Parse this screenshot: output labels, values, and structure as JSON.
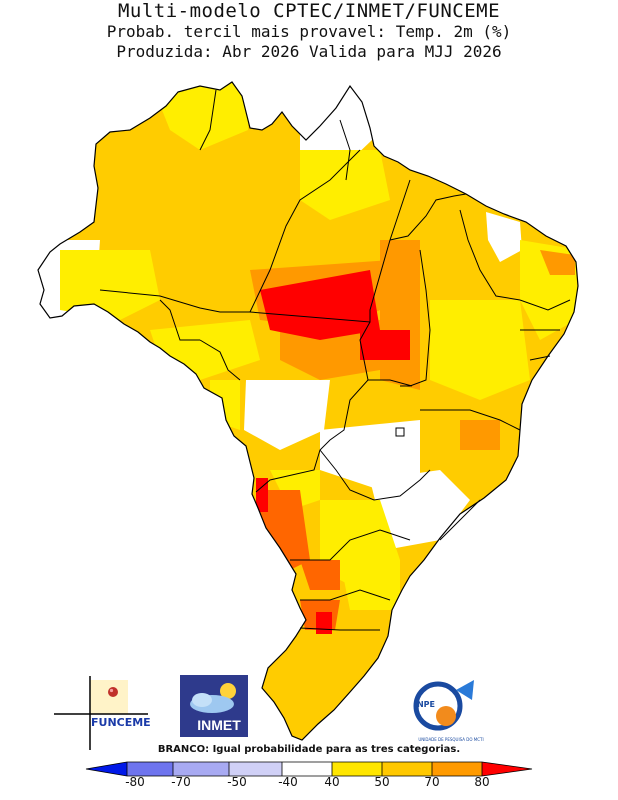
{
  "header": {
    "title": "Multi-modelo CPTEC/INMET/FUNCEME",
    "subtitle": "Probab. tercil mais provavel: Temp. 2m (%)",
    "produced": "Produzida: Abr 2026   Valida para MJJ 2026"
  },
  "logos": {
    "funceme": "FUNCEME",
    "inmet": "INMET",
    "inpe": "INPE",
    "inpe_subtitle": "UNIDADE DE PESQUISA DO MCTI"
  },
  "legend": {
    "note": "BRANCO: Igual probabilidade para as tres categorias.",
    "ticks": [
      "-80",
      "-70",
      "-50",
      "-40",
      "40",
      "50",
      "70",
      "80"
    ],
    "colors": [
      "#0018e8",
      "#6e74ee",
      "#a8aaf2",
      "#d0d0f6",
      "#ffffff",
      "#ffe600",
      "#ffc800",
      "#ff9a00",
      "#ff0000"
    ]
  },
  "map_colors": {
    "white": "#ffffff",
    "yellow": "#ffee00",
    "gold": "#ffcc00",
    "orange": "#ff9900",
    "darkorange": "#ff6600",
    "red": "#ff0000",
    "borders": "#000000"
  },
  "map_data": {
    "region": "Brasil",
    "categories": [
      "40",
      "50",
      "70",
      "80"
    ],
    "hotspots": [
      "Mato Grosso / Tocantins (80)",
      "Paraná / Santa Catarina border (80)",
      "Mato Grosso do Sul west (70-80)"
    ]
  }
}
